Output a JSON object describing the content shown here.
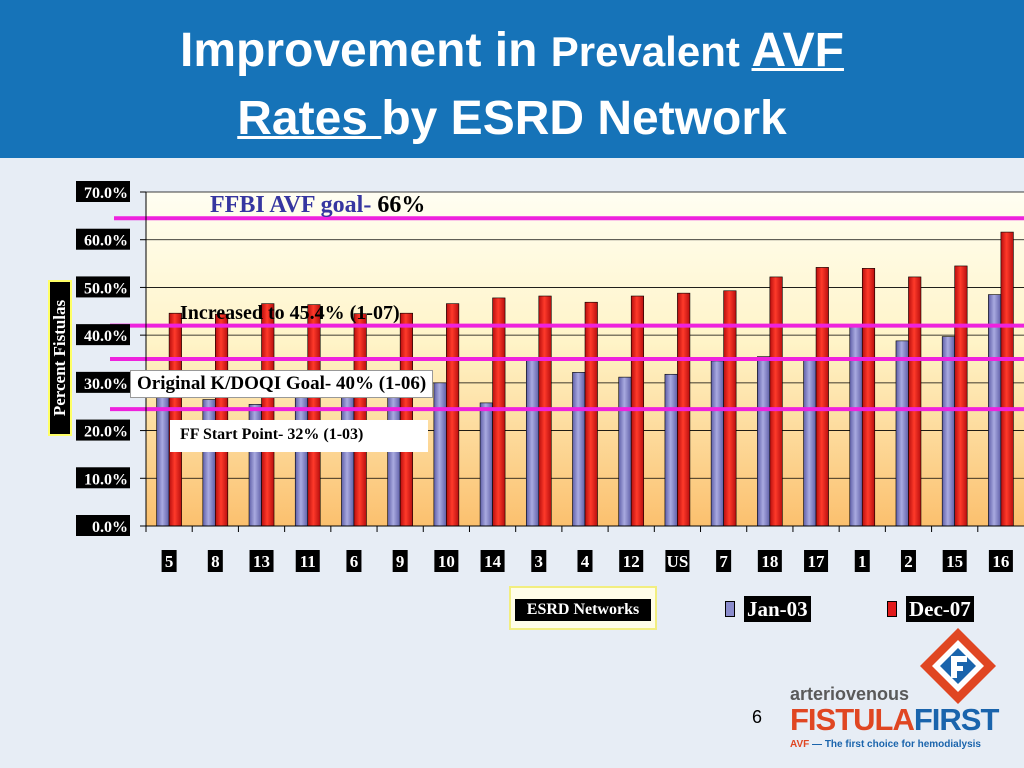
{
  "header": {
    "title_part1": "Improvement in ",
    "title_part2": "Prevalent ",
    "title_part3": "AVF",
    "title_part4": "Rates ",
    "title_part5": "by ESRD Network"
  },
  "chart_data": {
    "type": "bar",
    "categories": [
      "5",
      "8",
      "13",
      "11",
      "6",
      "9",
      "10",
      "14",
      "3",
      "4",
      "12",
      "US",
      "7",
      "18",
      "17",
      "1",
      "2",
      "15",
      "16"
    ],
    "series": [
      {
        "name": "Jan-03",
        "color": "#8b8ccc",
        "values": [
          27.0,
          26.5,
          25.5,
          29.0,
          28.0,
          29.5,
          30.0,
          25.8,
          34.7,
          32.2,
          31.2,
          31.8,
          34.6,
          35.5,
          35.0,
          42.0,
          38.8,
          39.7,
          48.5
        ]
      },
      {
        "name": "Dec-07",
        "color": "#e11a1a",
        "values": [
          44.6,
          44.4,
          46.6,
          46.4,
          44.5,
          44.6,
          46.6,
          47.8,
          48.2,
          46.9,
          48.2,
          48.8,
          49.3,
          52.2,
          54.2,
          54.0,
          52.2,
          54.5,
          61.6
        ]
      }
    ],
    "y_ticks": [
      "0.0%",
      "10.0%",
      "20.0%",
      "30.0%",
      "40.0%",
      "50.0%",
      "60.0%",
      "70.0%"
    ],
    "ylim": [
      0,
      70
    ],
    "ylabel": "Percent Fistulas",
    "xlabel": "ESRD Networks",
    "legend_position": "bottom-right",
    "grid": true,
    "reference_lines": [
      {
        "value": 64.5,
        "color": "#ee22dd"
      },
      {
        "value": 42.0,
        "color": "#ee22dd"
      },
      {
        "value": 35.0,
        "color": "#ee22dd"
      },
      {
        "value": 24.5,
        "color": "#ee22dd"
      }
    ],
    "annotations": {
      "goal_text": "FFBI AVF goal- ",
      "goal_value": "66%",
      "increased": "Increased to 45.4% (1-07)",
      "original": "Original K/DOQI Goal- 40% (1-06)",
      "start": "FF Start Point- 32% (1-03)"
    }
  },
  "footer": {
    "slide_number": "6",
    "logo_top": "arteriovenous",
    "logo_fistula": "FISTULA",
    "logo_first": "FIRST",
    "logo_tag_avf": "AVF",
    "logo_tag_rest": " — The first choice for hemodialysis"
  }
}
